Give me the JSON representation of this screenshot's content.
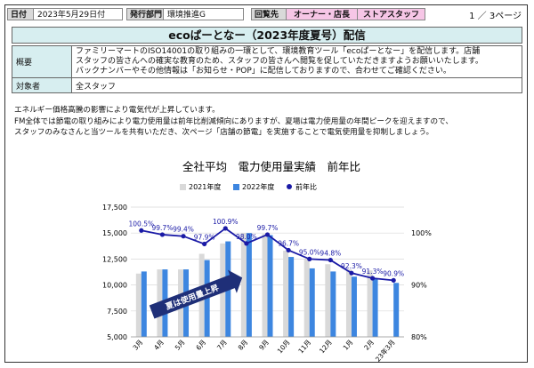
{
  "header": {
    "date_label": "日付",
    "date_value": "2023年5月29日付",
    "dept_label": "発行部門",
    "dept_value": "環境推進G",
    "route_label": "回覧先",
    "route_value_1": "オーナー・店長",
    "route_value_2": "ストアスタッフ",
    "page": "1 ／ 3ページ"
  },
  "title": "ecoぱーとなー（2023年度夏号）配信",
  "summary": {
    "label": "概要",
    "lines": [
      "ファミリーマートのISO14001の取り組みの一環として、環境教育ツール「ecoぱーとなー」を配信します。店舗",
      "スタッフの皆さんへの確実な教育のため、スタッフの皆さんへ閲覧を促していただきますようお願いいたします。",
      "バックナンバーやその他情報は「お知らせ・POP」に配信しておりますので、合わせてご確認ください。"
    ]
  },
  "audience": {
    "label": "対象者",
    "value": "全スタッフ"
  },
  "intro": [
    "エネルギー価格高騰の影響により電気代が上昇しています。",
    "FM全体では節電の取り組みにより電力使用量は前年比削減傾向にありますが、夏場は電力使用量の年間ピークを迎えますので、",
    "スタッフのみなさんと当ツールを共有いただき、次ページ「店舗の節電」を実施することで電気使用量を抑制しましょう。"
  ],
  "colors": {
    "y2021": "#d9d9d9",
    "y2022": "#3d86e0",
    "ratio": "#1a1aa6",
    "arrow": "#1f2f78",
    "title_bg": "#d7eef0",
    "pink": "#f6c6e6"
  },
  "chart_data": {
    "type": "bar",
    "title": "全社平均　電力使用量実績　前年比",
    "categories": [
      "3月",
      "4月",
      "5月",
      "6月",
      "7月",
      "8月",
      "9月",
      "10月",
      "11月",
      "12月",
      "1月",
      "2月",
      "23年3月"
    ],
    "series": [
      {
        "name": "2021年度",
        "values": [
          11100,
          11500,
          11500,
          13000,
          14000,
          15000,
          14900,
          13300,
          12500,
          12000,
          11500,
          11400,
          null
        ]
      },
      {
        "name": "2022年度",
        "values": [
          11300,
          11500,
          11500,
          12400,
          14200,
          15000,
          14800,
          12700,
          11600,
          11300,
          10800,
          10600,
          10200
        ]
      }
    ],
    "ratio_series": {
      "name": "前年比",
      "values": [
        100.5,
        99.7,
        99.4,
        97.9,
        100.9,
        98.0,
        99.7,
        96.7,
        95.0,
        94.8,
        92.3,
        91.3,
        90.9
      ],
      "labels": [
        "100.5%",
        "99.7%",
        "99.4%",
        "97.9%",
        "100.9%",
        "98.0%",
        "99.7%",
        "96.7%",
        "95.0%",
        "94.8%",
        "92.3%",
        "91.3%",
        "90.9%"
      ]
    },
    "ylim": [
      5000,
      17500
    ],
    "yticks": [
      "5,000",
      "7,500",
      "10,000",
      "12,500",
      "15,000",
      "17,500"
    ],
    "y2lim": [
      80,
      105
    ],
    "y2ticks": [
      "80%",
      "90%",
      "100%"
    ],
    "legend_position": "top",
    "annotation": "夏は使用量上昇"
  }
}
